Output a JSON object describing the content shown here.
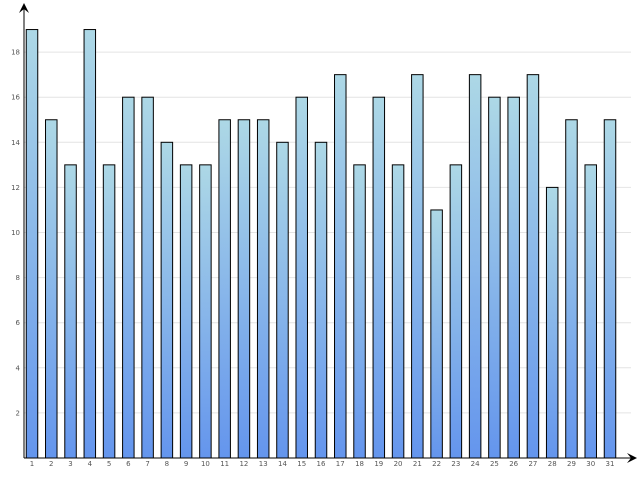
{
  "chart_data": {
    "type": "bar",
    "categories": [
      "1",
      "2",
      "3",
      "4",
      "5",
      "6",
      "7",
      "8",
      "9",
      "10",
      "11",
      "12",
      "13",
      "14",
      "15",
      "16",
      "17",
      "18",
      "19",
      "20",
      "21",
      "22",
      "23",
      "24",
      "25",
      "26",
      "27",
      "28",
      "29",
      "30",
      "31"
    ],
    "values": [
      19,
      15,
      13,
      19,
      13,
      16,
      16,
      14,
      13,
      13,
      15,
      15,
      15,
      14,
      16,
      14,
      17,
      13,
      16,
      13,
      17,
      11,
      13,
      17,
      16,
      16,
      17,
      12,
      15,
      13,
      15
    ],
    "y_ticks": [
      "2",
      "4",
      "6",
      "8",
      "10",
      "12",
      "14",
      "16",
      "18"
    ],
    "ylim": [
      0,
      20
    ],
    "grid": true,
    "colors": {
      "bar_top": "#add8e6",
      "bar_bottom": "#6495ed",
      "bar_stroke": "#000000",
      "grid": "#e4e4e4",
      "axis": "#000000"
    }
  }
}
